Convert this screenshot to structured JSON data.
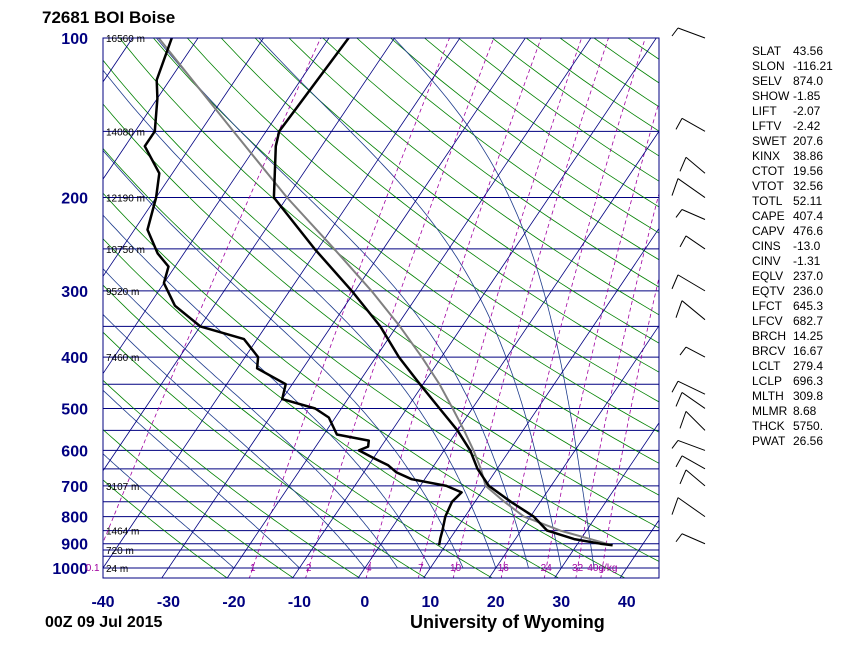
{
  "title": "72681 BOI Boise",
  "footer": {
    "time": "00Z 09 Jul 2015",
    "source": "University of Wyoming"
  },
  "colors": {
    "isobar": "#000080",
    "isotherm": "#000080",
    "dry_adiabat": "#008000",
    "moist_adiabat": "#1e3c8c",
    "mixing_ratio": "#a000a0",
    "sounding": "#000000",
    "parcel": "#808080"
  },
  "indices": [
    {
      "name": "SLAT",
      "value": "43.56"
    },
    {
      "name": "SLON",
      "value": "-116.21"
    },
    {
      "name": "SELV",
      "value": "874.0"
    },
    {
      "name": "SHOW",
      "value": "-1.85"
    },
    {
      "name": "LIFT",
      "value": "-2.07"
    },
    {
      "name": "LFTV",
      "value": "-2.42"
    },
    {
      "name": "SWET",
      "value": "207.6"
    },
    {
      "name": "KINX",
      "value": "38.86"
    },
    {
      "name": "CTOT",
      "value": "19.56"
    },
    {
      "name": "VTOT",
      "value": "32.56"
    },
    {
      "name": "TOTL",
      "value": "52.11"
    },
    {
      "name": "CAPE",
      "value": "407.4"
    },
    {
      "name": "CAPV",
      "value": "476.6"
    },
    {
      "name": "CINS",
      "value": "-13.0"
    },
    {
      "name": "CINV",
      "value": "-1.31"
    },
    {
      "name": "EQLV",
      "value": "237.0"
    },
    {
      "name": "EQTV",
      "value": "236.0"
    },
    {
      "name": "LFCT",
      "value": "645.3"
    },
    {
      "name": "LFCV",
      "value": "682.7"
    },
    {
      "name": "BRCH",
      "value": "14.25"
    },
    {
      "name": "BRCV",
      "value": "16.67"
    },
    {
      "name": "LCLT",
      "value": "279.4"
    },
    {
      "name": "LCLP",
      "value": "696.3"
    },
    {
      "name": "MLTH",
      "value": "309.8"
    },
    {
      "name": "MLMR",
      "value": "8.68"
    },
    {
      "name": "THCK",
      "value": "5750."
    },
    {
      "name": "PWAT",
      "value": "26.56"
    }
  ],
  "chart_data": {
    "type": "skew-t",
    "title": "72681 BOI Boise",
    "xlabel": "",
    "ylabel": "",
    "x_range": [
      -40,
      45
    ],
    "y_range": [
      1000,
      100
    ],
    "y_scale": "log",
    "x_ticks": [
      -40,
      -30,
      -20,
      -10,
      0,
      10,
      20,
      30,
      40
    ],
    "y_ticks": [
      100,
      200,
      300,
      400,
      500,
      600,
      700,
      800,
      900,
      1000
    ],
    "height_labels": [
      {
        "p": 100,
        "label": "16560 m"
      },
      {
        "p": 150,
        "label": "14080 m"
      },
      {
        "p": 200,
        "label": "12190 m"
      },
      {
        "p": 250,
        "label": "10750 m"
      },
      {
        "p": 300,
        "label": "9520 m"
      },
      {
        "p": 400,
        "label": "7460 m"
      },
      {
        "p": 700,
        "label": "3107 m"
      },
      {
        "p": 850,
        "label": "1464 m"
      },
      {
        "p": 925,
        "label": "720 m"
      },
      {
        "p": 1000,
        "label": "24 m"
      }
    ],
    "mixing_ratio_labels": [
      "0.1",
      "1",
      "2",
      "4",
      "7",
      "10",
      "16",
      "24",
      "32",
      "40g/kg"
    ],
    "temperature": [
      [
        906,
        35.5
      ],
      [
        900,
        33.5
      ],
      [
        882,
        29
      ],
      [
        850,
        24
      ],
      [
        800,
        20.5
      ],
      [
        750,
        15.5
      ],
      [
        700,
        10.5
      ],
      [
        650,
        7
      ],
      [
        600,
        4
      ],
      [
        550,
        0
      ],
      [
        500,
        -5
      ],
      [
        450,
        -10.5
      ],
      [
        400,
        -16.5
      ],
      [
        350,
        -22.5
      ],
      [
        300,
        -30.5
      ],
      [
        250,
        -40.5
      ],
      [
        200,
        -52
      ],
      [
        160,
        -57
      ],
      [
        150,
        -58
      ],
      [
        100,
        -57
      ]
    ],
    "dewpoint": [
      [
        906,
        9
      ],
      [
        880,
        8.5
      ],
      [
        850,
        8
      ],
      [
        800,
        7
      ],
      [
        750,
        6.5
      ],
      [
        720,
        7
      ],
      [
        700,
        4
      ],
      [
        680,
        -2
      ],
      [
        660,
        -5
      ],
      [
        640,
        -7
      ],
      [
        620,
        -10
      ],
      [
        600,
        -13
      ],
      [
        590,
        -12
      ],
      [
        575,
        -12.5
      ],
      [
        560,
        -18
      ],
      [
        520,
        -21
      ],
      [
        500,
        -24
      ],
      [
        480,
        -30
      ],
      [
        450,
        -31
      ],
      [
        420,
        -37
      ],
      [
        400,
        -38
      ],
      [
        370,
        -42
      ],
      [
        350,
        -50
      ],
      [
        320,
        -56
      ],
      [
        290,
        -60
      ],
      [
        270,
        -61
      ],
      [
        255,
        -64
      ],
      [
        230,
        -68
      ],
      [
        200,
        -70
      ],
      [
        180,
        -72
      ],
      [
        160,
        -77
      ],
      [
        150,
        -77
      ],
      [
        130,
        -80
      ],
      [
        120,
        -82
      ],
      [
        100,
        -84
      ]
    ],
    "parcel": [
      [
        906,
        35.5
      ],
      [
        850,
        26
      ],
      [
        800,
        19
      ],
      [
        750,
        14.5
      ],
      [
        700,
        10
      ],
      [
        650,
        7.5
      ],
      [
        600,
        4.5
      ],
      [
        550,
        1
      ],
      [
        500,
        -3
      ],
      [
        450,
        -7.5
      ],
      [
        400,
        -13
      ],
      [
        350,
        -19.5
      ],
      [
        300,
        -27.5
      ],
      [
        250,
        -37.5
      ],
      [
        200,
        -50
      ],
      [
        150,
        -65
      ],
      [
        100,
        -86
      ]
    ]
  }
}
